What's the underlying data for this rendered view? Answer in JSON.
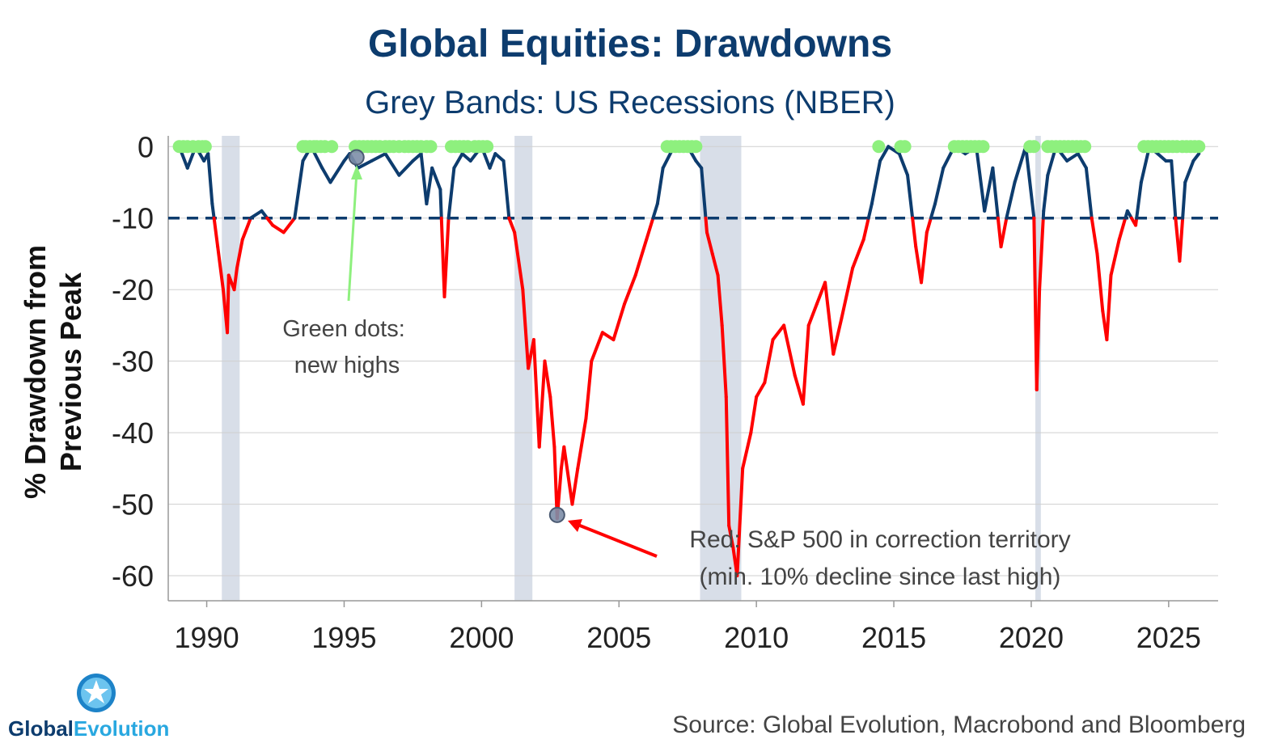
{
  "chart_data": {
    "type": "line",
    "title": "Global Equities: Drawdowns",
    "subtitle": "Grey Bands: US Recessions (NBER)",
    "ylabel_line1": "% Drawdown from",
    "ylabel_line2": "Previous Peak",
    "xlabel": "",
    "xlim": [
      1988.6,
      2026.8
    ],
    "ylim": [
      -63.5,
      1.5
    ],
    "y_ticks": [
      0,
      -10,
      -20,
      -30,
      -40,
      -50,
      -60
    ],
    "y_tick_labels": [
      "0",
      "-10",
      "-20",
      "-30",
      "-40",
      "-50",
      "-60"
    ],
    "x_ticks": [
      1990,
      1995,
      2000,
      2005,
      2010,
      2015,
      2020,
      2025
    ],
    "x_tick_labels": [
      "1990",
      "1995",
      "2000",
      "2005",
      "2010",
      "2015",
      "2020",
      "2025"
    ],
    "grid": "horizontal",
    "correction_threshold": -10,
    "recessions": [
      {
        "start": 1990.55,
        "end": 1991.2
      },
      {
        "start": 2001.2,
        "end": 2001.85
      },
      {
        "start": 2007.95,
        "end": 2009.45
      },
      {
        "start": 2020.15,
        "end": 2020.35
      }
    ],
    "series": [
      {
        "name": "Drawdown from previous peak",
        "x": [
          1989.0,
          1989.3,
          1989.6,
          1989.9,
          1990.05,
          1990.2,
          1990.4,
          1990.6,
          1990.75,
          1990.8,
          1991.0,
          1991.1,
          1991.3,
          1991.6,
          1992.0,
          1992.4,
          1992.8,
          1993.2,
          1993.5,
          1993.8,
          1994.2,
          1994.5,
          1995.0,
          1995.2,
          1995.5,
          1996.0,
          1996.5,
          1997.0,
          1997.5,
          1997.8,
          1998.0,
          1998.2,
          1998.5,
          1998.65,
          1998.8,
          1999.0,
          1999.3,
          1999.6,
          2000.0,
          2000.3,
          2000.5,
          2000.8,
          2001.0,
          2001.2,
          2001.5,
          2001.7,
          2001.9,
          2002.1,
          2002.3,
          2002.5,
          2002.65,
          2002.75,
          2002.9,
          2003.0,
          2003.3,
          2003.5,
          2003.8,
          2004.0,
          2004.4,
          2004.8,
          2005.2,
          2005.6,
          2006.0,
          2006.4,
          2006.6,
          2007.0,
          2007.5,
          2007.8,
          2008.0,
          2008.2,
          2008.4,
          2008.6,
          2008.75,
          2008.9,
          2009.0,
          2009.15,
          2009.3,
          2009.5,
          2009.8,
          2010.0,
          2010.3,
          2010.6,
          2011.0,
          2011.4,
          2011.7,
          2011.9,
          2012.2,
          2012.5,
          2012.8,
          2013.1,
          2013.5,
          2013.9,
          2014.2,
          2014.5,
          2014.8,
          2015.2,
          2015.5,
          2015.8,
          2016.0,
          2016.2,
          2016.5,
          2016.8,
          2017.2,
          2017.6,
          2018.0,
          2018.3,
          2018.6,
          2018.9,
          2019.1,
          2019.4,
          2019.8,
          2020.1,
          2020.2,
          2020.3,
          2020.45,
          2020.6,
          2020.9,
          2021.3,
          2021.7,
          2022.0,
          2022.2,
          2022.4,
          2022.6,
          2022.75,
          2022.9,
          2023.2,
          2023.5,
          2023.8,
          2024.0,
          2024.3,
          2024.6,
          2024.9,
          2025.1,
          2025.25,
          2025.4,
          2025.6,
          2025.9,
          2026.1
        ],
        "y": [
          0,
          -3,
          0,
          -2,
          -1,
          -8,
          -14,
          -20,
          -26,
          -18,
          -20,
          -17,
          -13,
          -10,
          -9,
          -11,
          -12,
          -10,
          -2,
          0,
          -3,
          -5,
          -2,
          -1,
          -3,
          -2,
          -1,
          -4,
          -2,
          -1,
          -8,
          -3,
          -6,
          -21,
          -10,
          -3,
          -1,
          -2,
          0,
          -3,
          -1,
          -2,
          -10,
          -12,
          -20,
          -31,
          -27,
          -42,
          -30,
          -35,
          -42,
          -52,
          -45,
          -42,
          -50,
          -45,
          -38,
          -30,
          -26,
          -27,
          -22,
          -18,
          -13,
          -8,
          -3,
          0,
          0,
          -2,
          -3,
          -12,
          -15,
          -18,
          -25,
          -35,
          -53,
          -56,
          -60,
          -45,
          -40,
          -35,
          -33,
          -27,
          -25,
          -32,
          -36,
          -25,
          -22,
          -19,
          -29,
          -24,
          -17,
          -13,
          -8,
          -2,
          0,
          -1,
          -4,
          -14,
          -19,
          -12,
          -8,
          -3,
          0,
          -1,
          0,
          -9,
          -3,
          -14,
          -10,
          -5,
          0,
          -10,
          -34,
          -20,
          -9,
          -4,
          0,
          -2,
          -1,
          -3,
          -10,
          -15,
          -23,
          -27,
          -18,
          -13,
          -9,
          -11,
          -5,
          0,
          -1,
          -2,
          -2,
          -10,
          -16,
          -5,
          -2,
          -1
        ]
      }
    ],
    "new_high_years": [
      1989.0,
      1989.15,
      1989.3,
      1989.5,
      1989.7,
      1989.85,
      1989.95,
      1993.5,
      1993.6,
      1993.75,
      1993.9,
      1994.0,
      1994.15,
      1994.3,
      1994.55,
      1995.4,
      1995.55,
      1995.7,
      1995.85,
      1996.0,
      1996.15,
      1996.3,
      1996.5,
      1996.65,
      1996.8,
      1997.0,
      1997.2,
      1997.35,
      1997.5,
      1997.65,
      1997.8,
      1998.0,
      1998.15,
      1998.9,
      1999.05,
      1999.2,
      1999.35,
      1999.5,
      1999.75,
      1999.9,
      2000.05,
      2000.2,
      2006.75,
      2006.9,
      2007.05,
      2007.2,
      2007.35,
      2007.5,
      2007.65,
      2007.8,
      2014.45,
      2015.25,
      2015.4,
      2017.2,
      2017.35,
      2017.5,
      2017.65,
      2017.8,
      2017.95,
      2018.1,
      2018.25,
      2019.95,
      2020.1,
      2020.6,
      2020.75,
      2020.9,
      2021.05,
      2021.2,
      2021.35,
      2021.5,
      2021.65,
      2021.8,
      2021.95,
      2024.1,
      2024.25,
      2024.4,
      2024.55,
      2024.7,
      2024.85,
      2025.0,
      2025.15,
      2025.3,
      2025.5,
      2025.65,
      2025.8,
      2025.95,
      2026.1
    ],
    "highlights": [
      {
        "x": 1995.45,
        "y": -1.5,
        "label": "new high"
      },
      {
        "x": 2002.75,
        "y": -51.5,
        "label": "trough"
      }
    ],
    "annotations": [
      {
        "line1": "Green dots:",
        "line2": "new highs"
      },
      {
        "line1": "Red: S&P 500 in correction territory",
        "line2": "(min. 10% decline since last high)"
      }
    ]
  },
  "footer": {
    "source": "Source: Global Evolution, Macrobond and Bloomberg",
    "logo_text_a": "Global",
    "logo_text_b": "Evolution"
  },
  "colors": {
    "blue": "#0d3c6e",
    "red": "#ff0000",
    "green": "#8ef07e",
    "band": "#d8dee8",
    "logo_light": "#29a8e0"
  }
}
